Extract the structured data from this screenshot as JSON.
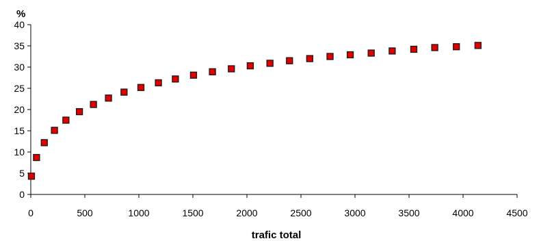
{
  "chart_data": {
    "type": "scatter",
    "title": "",
    "xlabel": "trafic total",
    "ylabel": "%",
    "xlim": [
      0,
      4500
    ],
    "ylim": [
      0,
      40
    ],
    "x_ticks": [
      0,
      500,
      1000,
      1500,
      2000,
      2500,
      3000,
      3500,
      4000,
      4500
    ],
    "y_ticks": [
      0,
      5,
      10,
      15,
      20,
      25,
      30,
      35,
      40
    ],
    "grid": false,
    "legend": "none",
    "marker": "square",
    "marker_color": "#e00000",
    "marker_edge_color": "#1a1a1a",
    "series": [
      {
        "points": [
          [
            6,
            4.3
          ],
          [
            53,
            8.7
          ],
          [
            125,
            12.2
          ],
          [
            219,
            15.1
          ],
          [
            325,
            17.5
          ],
          [
            450,
            19.5
          ],
          [
            580,
            21.2
          ],
          [
            719,
            22.7
          ],
          [
            863,
            24.1
          ],
          [
            1019,
            25.2
          ],
          [
            1181,
            26.3
          ],
          [
            1338,
            27.2
          ],
          [
            1506,
            28.1
          ],
          [
            1681,
            28.9
          ],
          [
            1856,
            29.6
          ],
          [
            2031,
            30.3
          ],
          [
            2213,
            30.9
          ],
          [
            2394,
            31.5
          ],
          [
            2581,
            32.0
          ],
          [
            2769,
            32.5
          ],
          [
            2956,
            32.9
          ],
          [
            3150,
            33.3
          ],
          [
            3344,
            33.8
          ],
          [
            3544,
            34.2
          ],
          [
            3738,
            34.6
          ],
          [
            3938,
            34.8
          ],
          [
            4138,
            35.1
          ]
        ]
      }
    ]
  }
}
